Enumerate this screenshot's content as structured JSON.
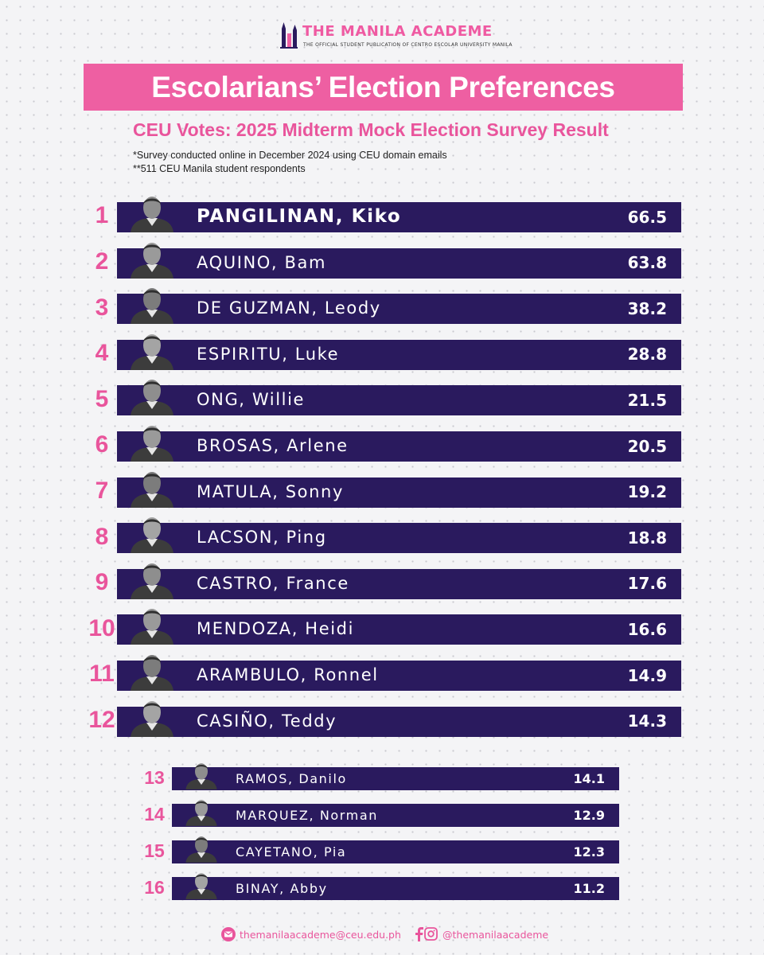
{
  "header": {
    "brand_title": "THE MANILA ACADEME",
    "brand_subtitle": "THE OFFICIAL STUDENT PUBLICATION OF CENTRO ESCOLAR UNIVERSITY MANILA",
    "logo_icon": "tower-logo-icon"
  },
  "title": "Escolarians’ Election Preferences",
  "subtitle": "CEU Votes: 2025 Midterm Mock Election Survey Result",
  "notes": [
    "*Survey conducted online in December 2024 using CEU domain emails",
    "**511 CEU Manila student respondents"
  ],
  "colors": {
    "accent_pink": "#ee5fa2",
    "bar_navy": "#2a1a5e",
    "background": "#f4f4f6"
  },
  "candidates": [
    {
      "rank": "1",
      "name": "PANGILINAN, Kiko",
      "value": "66.5"
    },
    {
      "rank": "2",
      "name": "AQUINO, Bam",
      "value": "63.8"
    },
    {
      "rank": "3",
      "name": "DE GUZMAN, Leody",
      "value": "38.2"
    },
    {
      "rank": "4",
      "name": "ESPIRITU, Luke",
      "value": "28.8"
    },
    {
      "rank": "5",
      "name": "ONG, Willie",
      "value": "21.5"
    },
    {
      "rank": "6",
      "name": "BROSAS, Arlene",
      "value": "20.5"
    },
    {
      "rank": "7",
      "name": "MATULA, Sonny",
      "value": "19.2"
    },
    {
      "rank": "8",
      "name": "LACSON, Ping",
      "value": "18.8"
    },
    {
      "rank": "9",
      "name": "CASTRO, France",
      "value": "17.6"
    },
    {
      "rank": "10",
      "name": "MENDOZA, Heidi",
      "value": "16.6"
    },
    {
      "rank": "11",
      "name": "ARAMBULO, Ronnel",
      "value": "14.9"
    },
    {
      "rank": "12",
      "name": "CASIÑO, Teddy",
      "value": "14.3"
    },
    {
      "rank": "13",
      "name": "RAMOS, Danilo",
      "value": "14.1"
    },
    {
      "rank": "14",
      "name": "MARQUEZ, Norman",
      "value": "12.9"
    },
    {
      "rank": "15",
      "name": "CAYETANO, Pia",
      "value": "12.3"
    },
    {
      "rank": "16",
      "name": "BINAY, Abby",
      "value": "11.2"
    }
  ],
  "footer": {
    "email": "themanilaacademe@ceu.edu.ph",
    "social": "@themanilaacademe",
    "email_icon": "email-icon",
    "facebook_icon": "facebook-icon",
    "instagram_icon": "instagram-icon"
  }
}
